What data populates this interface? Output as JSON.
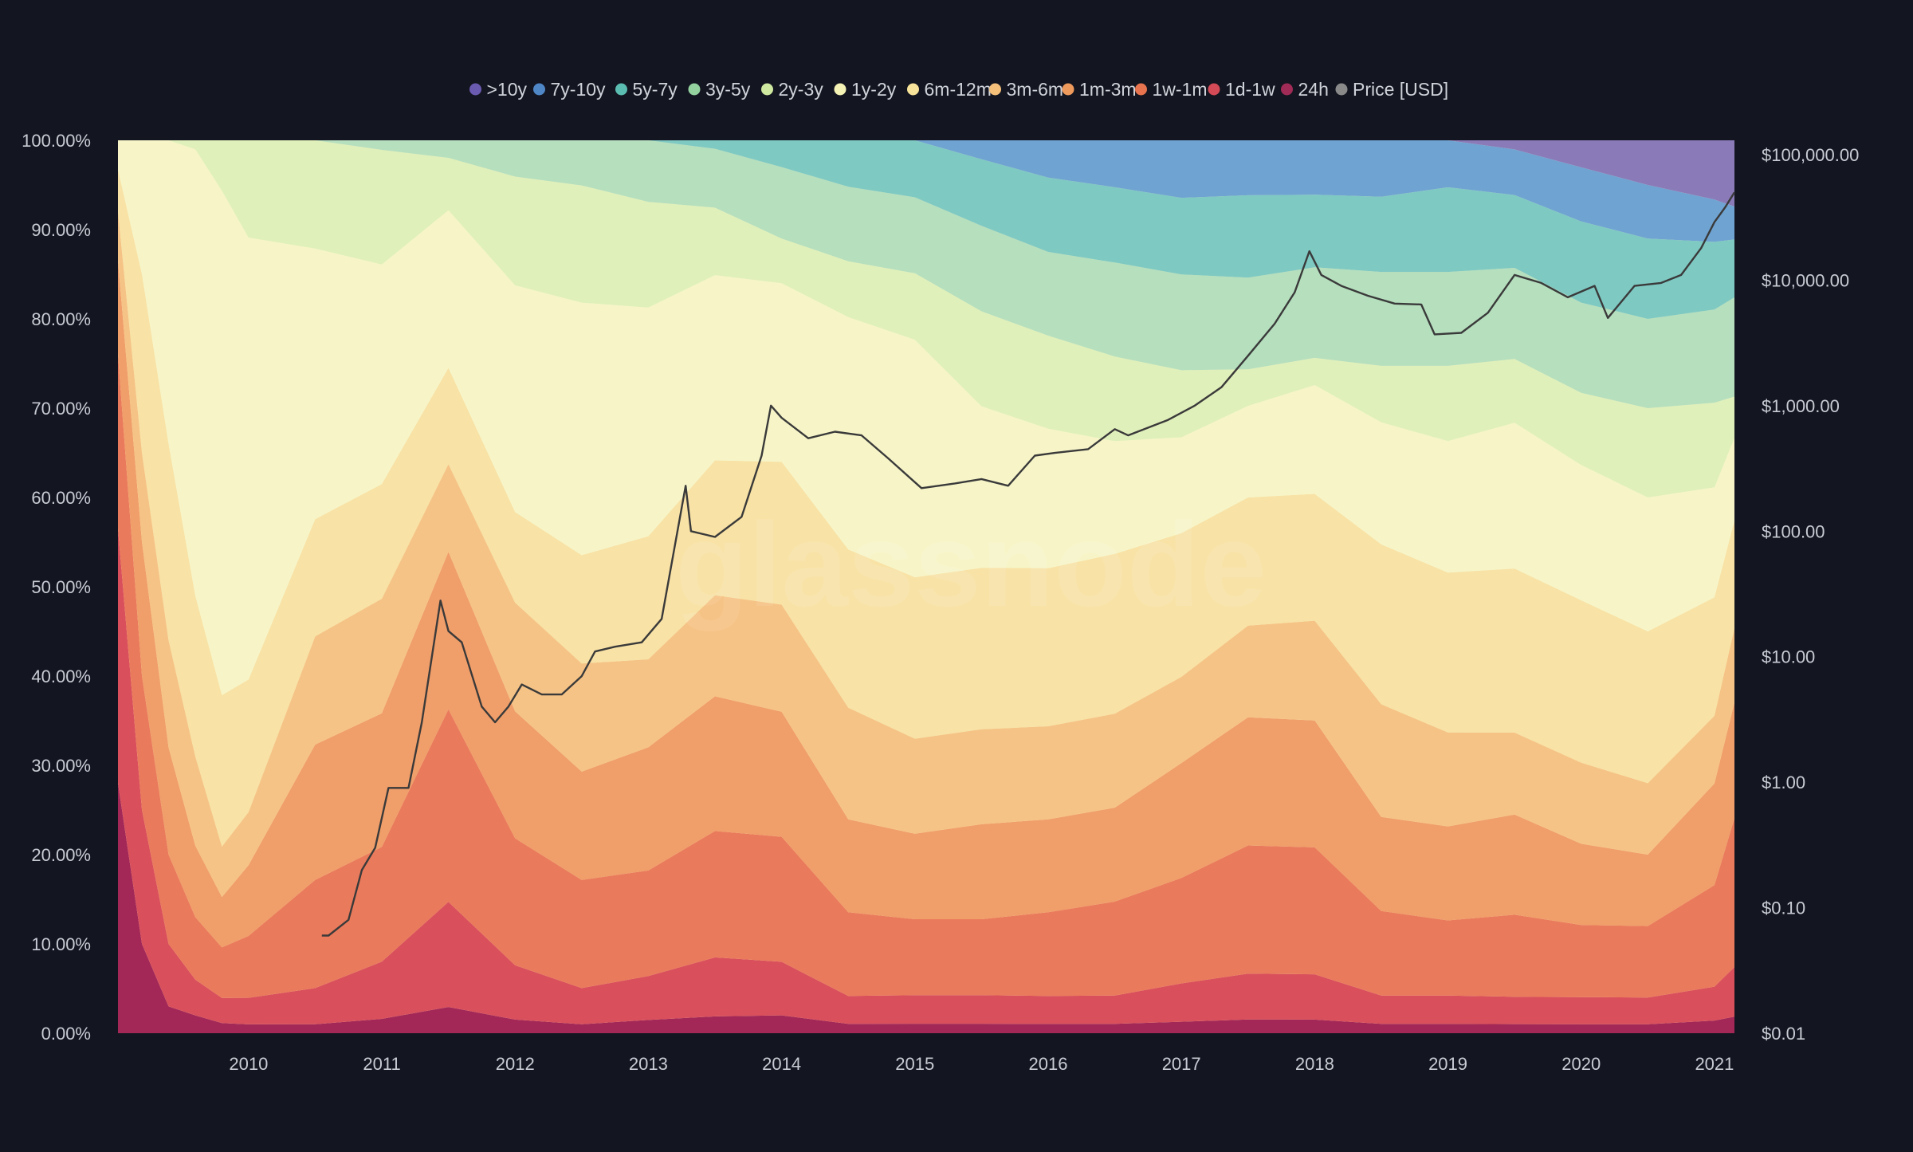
{
  "chart_data": {
    "type": "area",
    "title": "",
    "watermark": "glassnode",
    "stacked": true,
    "background_color": "#131520",
    "x": [
      2009.0,
      2009.2,
      2009.4,
      2009.6,
      2009.8,
      2010.0,
      2010.5,
      2011.0,
      2011.5,
      2012.0,
      2012.5,
      2013.0,
      2013.5,
      2014.0,
      2014.5,
      2015.0,
      2015.5,
      2016.0,
      2016.5,
      2017.0,
      2017.5,
      2018.0,
      2018.5,
      2019.0,
      2019.5,
      2020.0,
      2020.5,
      2021.0,
      2021.15
    ],
    "x_ticks": [
      "2010",
      "2011",
      "2012",
      "2013",
      "2014",
      "2015",
      "2016",
      "2017",
      "2018",
      "2019",
      "2020",
      "2021"
    ],
    "x_range": [
      2009.02,
      2021.15
    ],
    "y_left_ticks": [
      "0.00%",
      "10.00%",
      "20.00%",
      "30.00%",
      "40.00%",
      "50.00%",
      "60.00%",
      "70.00%",
      "80.00%",
      "90.00%",
      "100.00%"
    ],
    "y_left_range": [
      0,
      100
    ],
    "y_right_ticks": [
      "$0.01",
      "$0.10",
      "$1.00",
      "$10.00",
      "$100.00",
      "$1,000.00",
      "$10,000.00",
      "$100,000.00"
    ],
    "y_right_scale": "log",
    "y_right_range": [
      0.01,
      130000
    ],
    "legend_position": "top-center",
    "series": [
      {
        "name": "24h",
        "color": "#a32858",
        "values": [
          30,
          10,
          3,
          2,
          1.2,
          1,
          1,
          1.5,
          3,
          1.5,
          1,
          1.5,
          2,
          2,
          1,
          1,
          1,
          1,
          1,
          1.2,
          1.5,
          1.5,
          1,
          1,
          1,
          1,
          1,
          1.5,
          2
        ]
      },
      {
        "name": "1d-1w",
        "color": "#d9505c",
        "values": [
          30,
          15,
          7,
          4,
          3,
          3,
          4,
          6,
          12,
          6,
          4,
          5,
          7,
          6,
          3,
          3,
          3,
          3,
          3,
          4,
          5,
          5,
          3,
          3,
          3,
          3,
          3,
          4,
          6
        ]
      },
      {
        "name": "1w-1m",
        "color": "#ea7a5c",
        "values": [
          20,
          15,
          10,
          7,
          6,
          7,
          12,
          12,
          22,
          14,
          12,
          12,
          15,
          14,
          9,
          8,
          8,
          9,
          10,
          11,
          14,
          14,
          9,
          8,
          9,
          8,
          8,
          12,
          18
        ]
      },
      {
        "name": "1m-3m",
        "color": "#f09e6a",
        "values": [
          10,
          15,
          12,
          8,
          6,
          8,
          15,
          14,
          18,
          14,
          12,
          14,
          16,
          14,
          10,
          9,
          10,
          10,
          10,
          12,
          14,
          14,
          10,
          10,
          11,
          9,
          8,
          12,
          14
        ]
      },
      {
        "name": "3m-6m",
        "color": "#f6c386",
        "values": [
          5,
          10,
          12,
          10,
          6,
          6,
          12,
          12,
          10,
          12,
          12,
          10,
          12,
          12,
          12,
          10,
          10,
          10,
          10,
          9,
          10,
          11,
          12,
          10,
          9,
          9,
          8,
          8,
          9
        ]
      },
      {
        "name": "6m-12m",
        "color": "#f8e2a6",
        "values": [
          3,
          20,
          22,
          18,
          18,
          15,
          13,
          12,
          11,
          10,
          12,
          14,
          16,
          16,
          17,
          17,
          17,
          17,
          17,
          15,
          14,
          14,
          17,
          17,
          18,
          18,
          17,
          14,
          13
        ]
      },
      {
        "name": "1y-2y",
        "color": "#f7f5c8",
        "values": [
          2,
          15,
          34,
          50,
          60,
          50,
          30,
          23,
          18,
          25,
          28,
          26,
          22,
          20,
          25,
          25,
          17,
          15,
          12,
          10,
          10,
          12,
          13,
          14,
          16,
          15,
          15,
          13,
          10
        ]
      },
      {
        "name": "2y-3y",
        "color": "#e0f0bb",
        "values": [
          0,
          0,
          0,
          1,
          6,
          11,
          12,
          12,
          6,
          12,
          13,
          12,
          8,
          5,
          6,
          7,
          10,
          10,
          9,
          7,
          4,
          3,
          6,
          8,
          7,
          8,
          10,
          10,
          5
        ]
      },
      {
        "name": "3y-5y",
        "color": "#b6dfbe",
        "values": [
          0,
          0,
          0,
          0,
          0,
          0,
          0,
          1,
          2,
          4,
          5,
          7,
          7,
          8,
          8,
          8,
          9,
          9,
          10,
          10,
          10,
          10,
          10,
          10,
          10,
          10,
          10,
          11,
          12
        ]
      },
      {
        "name": "5y-7y",
        "color": "#7fc9c3",
        "values": [
          0,
          0,
          0,
          0,
          0,
          0,
          0,
          0,
          0,
          0,
          0,
          0,
          1,
          3,
          5,
          6,
          7,
          8,
          8,
          8,
          9,
          8,
          8,
          9,
          8,
          9,
          9,
          8,
          7
        ]
      },
      {
        "name": "7y-10y",
        "color": "#6fa3d2",
        "values": [
          0,
          0,
          0,
          0,
          0,
          0,
          0,
          0,
          0,
          0,
          0,
          0,
          0,
          0,
          0,
          0,
          2,
          4,
          5,
          6,
          6,
          6,
          6,
          5,
          5,
          6,
          6,
          5,
          4
        ]
      },
      {
        "name": ">10y",
        "color": "#8a7ab8",
        "values": [
          0,
          0,
          0,
          0,
          0,
          0,
          0,
          0,
          0,
          0,
          0,
          0,
          0,
          0,
          0,
          0,
          0,
          0,
          0,
          0,
          0,
          0,
          0,
          0,
          1,
          3,
          5,
          7,
          8
        ]
      },
      {
        "name": "Price [USD]",
        "color": "#8a8a8a",
        "axis": "right",
        "line_color": "#3a3a3a",
        "points": [
          [
            2010.55,
            0.06
          ],
          [
            2010.6,
            0.06
          ],
          [
            2010.75,
            0.08
          ],
          [
            2010.85,
            0.2
          ],
          [
            2010.95,
            0.3
          ],
          [
            2011.05,
            0.9
          ],
          [
            2011.2,
            0.9
          ],
          [
            2011.3,
            3
          ],
          [
            2011.44,
            28
          ],
          [
            2011.5,
            16
          ],
          [
            2011.6,
            13
          ],
          [
            2011.75,
            4
          ],
          [
            2011.85,
            3
          ],
          [
            2011.95,
            4
          ],
          [
            2012.05,
            6
          ],
          [
            2012.2,
            5
          ],
          [
            2012.35,
            5
          ],
          [
            2012.5,
            7
          ],
          [
            2012.6,
            11
          ],
          [
            2012.75,
            12
          ],
          [
            2012.95,
            13
          ],
          [
            2013.1,
            20
          ],
          [
            2013.28,
            230
          ],
          [
            2013.32,
            100
          ],
          [
            2013.5,
            90
          ],
          [
            2013.7,
            130
          ],
          [
            2013.85,
            400
          ],
          [
            2013.92,
            1000
          ],
          [
            2014.0,
            800
          ],
          [
            2014.2,
            550
          ],
          [
            2014.4,
            620
          ],
          [
            2014.6,
            580
          ],
          [
            2014.8,
            380
          ],
          [
            2015.05,
            220
          ],
          [
            2015.3,
            240
          ],
          [
            2015.5,
            260
          ],
          [
            2015.7,
            230
          ],
          [
            2015.9,
            400
          ],
          [
            2016.05,
            420
          ],
          [
            2016.3,
            450
          ],
          [
            2016.5,
            650
          ],
          [
            2016.6,
            580
          ],
          [
            2016.9,
            770
          ],
          [
            2017.1,
            1000
          ],
          [
            2017.3,
            1400
          ],
          [
            2017.5,
            2500
          ],
          [
            2017.7,
            4500
          ],
          [
            2017.85,
            8000
          ],
          [
            2017.96,
            17000
          ],
          [
            2018.05,
            11000
          ],
          [
            2018.2,
            9000
          ],
          [
            2018.4,
            7500
          ],
          [
            2018.6,
            6500
          ],
          [
            2018.8,
            6400
          ],
          [
            2018.9,
            3700
          ],
          [
            2019.1,
            3800
          ],
          [
            2019.3,
            5500
          ],
          [
            2019.5,
            11000
          ],
          [
            2019.7,
            9500
          ],
          [
            2019.9,
            7300
          ],
          [
            2020.1,
            9000
          ],
          [
            2020.2,
            5000
          ],
          [
            2020.4,
            9000
          ],
          [
            2020.6,
            9500
          ],
          [
            2020.75,
            11000
          ],
          [
            2020.9,
            18000
          ],
          [
            2021.0,
            29000
          ],
          [
            2021.08,
            38000
          ],
          [
            2021.15,
            50000
          ]
        ]
      }
    ]
  }
}
